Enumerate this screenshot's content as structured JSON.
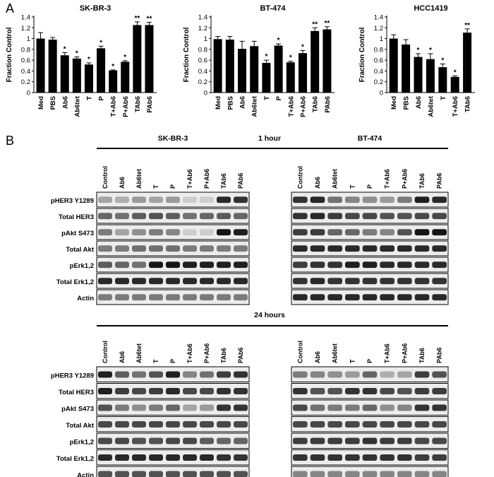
{
  "panel_labels": {
    "a": "A",
    "b": "B"
  },
  "chart_data": [
    {
      "type": "bar",
      "title": "SK-BR-3",
      "ylabel": "Fraction Control",
      "ylim": [
        0,
        1.4
      ],
      "yticks": [
        "0",
        "0.2",
        "0.4",
        "0.6",
        "0.8",
        "1",
        "1.2",
        "1.4"
      ],
      "categories": [
        "Med",
        "PBS",
        "Ab6",
        "Ab6tet",
        "T",
        "P",
        "T+Ab6",
        "P+Ab6",
        "TAb6",
        "PAb6"
      ],
      "values": [
        1.0,
        0.98,
        0.69,
        0.63,
        0.52,
        0.82,
        0.41,
        0.57,
        1.25,
        1.25
      ],
      "errors": [
        0.11,
        0.04,
        0.05,
        0.03,
        0.03,
        0.04,
        0.01,
        0.02,
        0.06,
        0.05
      ],
      "significance": [
        "",
        "",
        "*",
        "*",
        "*",
        "*",
        "*",
        "*",
        "**",
        "**"
      ]
    },
    {
      "type": "bar",
      "title": "BT-474",
      "ylabel": "Fraction Control",
      "ylim": [
        0,
        1.4
      ],
      "yticks": [
        "0",
        "0.2",
        "0.4",
        "0.6",
        "0.8",
        "1",
        "1.2",
        "1.4"
      ],
      "categories": [
        "Med",
        "PBS",
        "Ab6",
        "Ab6tet",
        "T",
        "P",
        "T+Ab6",
        "P+Ab6",
        "TAb6",
        "PAb6"
      ],
      "values": [
        0.99,
        0.98,
        0.81,
        0.86,
        0.55,
        0.87,
        0.56,
        0.73,
        1.14,
        1.17
      ],
      "errors": [
        0.05,
        0.06,
        0.14,
        0.09,
        0.05,
        0.03,
        0.02,
        0.05,
        0.06,
        0.05
      ],
      "significance": [
        "",
        "",
        "",
        "",
        "*",
        "*",
        "*",
        "*",
        "**",
        "**"
      ]
    },
    {
      "type": "bar",
      "title": "HCC1419",
      "ylabel": "Fraction Control",
      "ylim": [
        0,
        1.4
      ],
      "yticks": [
        "0",
        "0.2",
        "0.4",
        "0.6",
        "0.8",
        "1",
        "1.2",
        "1.4"
      ],
      "categories": [
        "Med",
        "PBS",
        "Ab6",
        "Ab6tet",
        "T",
        "T+Ab6",
        "TAb6"
      ],
      "values": [
        1.0,
        0.89,
        0.66,
        0.62,
        0.47,
        0.29,
        1.11
      ],
      "errors": [
        0.07,
        0.09,
        0.06,
        0.1,
        0.06,
        0.02,
        0.07
      ],
      "significance": [
        "",
        "",
        "*",
        "*",
        "*",
        "*",
        "**"
      ]
    }
  ],
  "blots": {
    "sections": [
      {
        "condition": "1 hour",
        "cell_lines": [
          "SK-BR-3",
          "BT-474"
        ],
        "lanes": [
          "Control",
          "Ab6",
          "Ab6tet",
          "T",
          "P",
          "T+Ab6",
          "P+Ab6",
          "TAb6",
          "PAb6"
        ],
        "rows": [
          "pHER3 Y1289",
          "Total HER3",
          "pAkt S473",
          "Total Akt",
          "pErk1,2",
          "Total Erk1,2",
          "Actin"
        ]
      },
      {
        "condition": "24 hours",
        "cell_lines": [],
        "lanes": [
          "Control",
          "Ab6",
          "Ab6tet",
          "T",
          "P",
          "T+Ab6",
          "P+Ab6",
          "TAb6",
          "PAb6"
        ],
        "rows": [
          "pHER3 Y1289",
          "Total HER3",
          "pAkt S473",
          "Total Akt",
          "pErk1,2",
          "Total Erk1,2",
          "Actin"
        ]
      }
    ]
  }
}
